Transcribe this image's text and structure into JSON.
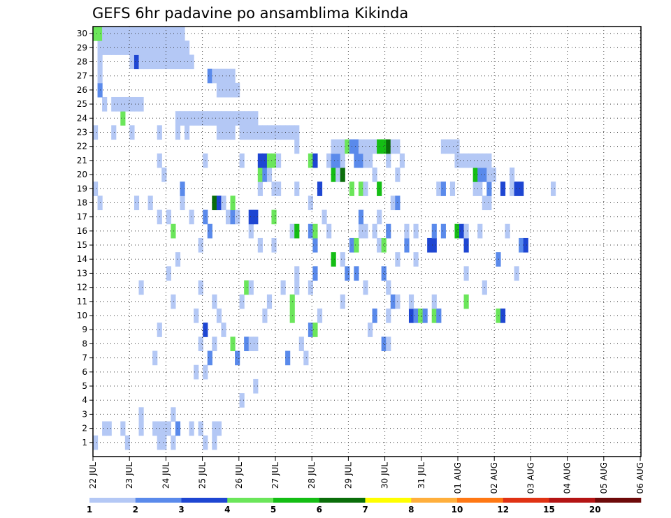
{
  "chart_data": {
    "type": "heatmap",
    "title": "GEFS 6hr padavine po ansamblima Kikinda",
    "xlabel": "",
    "ylabel": "",
    "x_tick_labels": [
      "22 JUL",
      "23 JUL",
      "24 JUL",
      "25 JUL",
      "26 JUL",
      "27 JUL",
      "28 JUL",
      "29 JUL",
      "30 JUL",
      "31 JUL",
      "01 AUG",
      "02 AUG",
      "03 AUG",
      "04 AUG",
      "05 AUG",
      "06 AUG"
    ],
    "y_tick_labels": [
      "1",
      "2",
      "3",
      "4",
      "5",
      "6",
      "7",
      "8",
      "9",
      "10",
      "11",
      "12",
      "13",
      "14",
      "15",
      "16",
      "17",
      "18",
      "19",
      "20",
      "21",
      "22",
      "23",
      "24",
      "25",
      "26",
      "27",
      "28",
      "29",
      "30"
    ],
    "grid": true,
    "colorbar": {
      "position": "bottom",
      "labels": [
        "1",
        "2",
        "3",
        "4",
        "5",
        "6",
        "7",
        "8",
        "10",
        "12",
        "15",
        "20"
      ],
      "colors": [
        "#b4c8f5",
        "#5a8aeb",
        "#1e46d2",
        "#6be65a",
        "#14be14",
        "#0a6e0a",
        "#ffff00",
        "#ffaf3c",
        "#ff7814",
        "#e03214",
        "#b41414",
        "#6e0a0a"
      ]
    },
    "values": [
      [
        0,
        0,
        1
      ],
      [
        0,
        7,
        1
      ],
      [
        0,
        14,
        1
      ],
      [
        0,
        15,
        1
      ],
      [
        0,
        17,
        1
      ],
      [
        0,
        24,
        1
      ],
      [
        0,
        26,
        1
      ],
      [
        1,
        2,
        1
      ],
      [
        1,
        3,
        1
      ],
      [
        1,
        6,
        1
      ],
      [
        1,
        10,
        1
      ],
      [
        1,
        13,
        1
      ],
      [
        1,
        14,
        1
      ],
      [
        1,
        15,
        1
      ],
      [
        1,
        16,
        1
      ],
      [
        1,
        18,
        2
      ],
      [
        1,
        21,
        1
      ],
      [
        1,
        23,
        1
      ],
      [
        1,
        26,
        1
      ],
      [
        1,
        27,
        1
      ],
      [
        2,
        10,
        1
      ],
      [
        2,
        17,
        1
      ],
      [
        3,
        32,
        1
      ],
      [
        4,
        35,
        1
      ],
      [
        5,
        22,
        1
      ],
      [
        5,
        24,
        1
      ],
      [
        6,
        13,
        1
      ],
      [
        6,
        25,
        2
      ],
      [
        6,
        31,
        2
      ],
      [
        6,
        42,
        2
      ],
      [
        6,
        46,
        1
      ],
      [
        7,
        23,
        1
      ],
      [
        7,
        26,
        1
      ],
      [
        7,
        30,
        4
      ],
      [
        7,
        33,
        2
      ],
      [
        7,
        34,
        1
      ],
      [
        7,
        35,
        1
      ],
      [
        7,
        45,
        1
      ],
      [
        7,
        63,
        2
      ],
      [
        7,
        64,
        1
      ],
      [
        8,
        14,
        1
      ],
      [
        8,
        24,
        3
      ],
      [
        8,
        28,
        1
      ],
      [
        8,
        47,
        2
      ],
      [
        8,
        48,
        4
      ],
      [
        8,
        60,
        1
      ],
      [
        9,
        22,
        1
      ],
      [
        9,
        27,
        1
      ],
      [
        9,
        37,
        1
      ],
      [
        9,
        43,
        4
      ],
      [
        9,
        49,
        1
      ],
      [
        9,
        61,
        2
      ],
      [
        9,
        64,
        1
      ],
      [
        9,
        69,
        3
      ],
      [
        9,
        70,
        2
      ],
      [
        9,
        71,
        4
      ],
      [
        9,
        72,
        2
      ],
      [
        9,
        74,
        4
      ],
      [
        9,
        75,
        2
      ],
      [
        9,
        88,
        4
      ],
      [
        9,
        89,
        3
      ],
      [
        10,
        17,
        1
      ],
      [
        10,
        26,
        1
      ],
      [
        10,
        32,
        1
      ],
      [
        10,
        38,
        1
      ],
      [
        10,
        43,
        4
      ],
      [
        10,
        54,
        1
      ],
      [
        10,
        65,
        2
      ],
      [
        10,
        66,
        1
      ],
      [
        10,
        69,
        1
      ],
      [
        10,
        74,
        1
      ],
      [
        10,
        81,
        4
      ],
      [
        11,
        10,
        1
      ],
      [
        11,
        23,
        1
      ],
      [
        11,
        33,
        4
      ],
      [
        11,
        34,
        1
      ],
      [
        11,
        41,
        1
      ],
      [
        11,
        44,
        1
      ],
      [
        11,
        47,
        1
      ],
      [
        11,
        59,
        1
      ],
      [
        11,
        64,
        1
      ],
      [
        11,
        85,
        1
      ],
      [
        12,
        16,
        1
      ],
      [
        12,
        44,
        1
      ],
      [
        12,
        48,
        2
      ],
      [
        12,
        55,
        2
      ],
      [
        12,
        57,
        2
      ],
      [
        12,
        63,
        2
      ],
      [
        12,
        81,
        1
      ],
      [
        12,
        92,
        1
      ],
      [
        13,
        18,
        1
      ],
      [
        13,
        52,
        5
      ],
      [
        13,
        54,
        1
      ],
      [
        13,
        66,
        1
      ],
      [
        13,
        70,
        1
      ],
      [
        13,
        88,
        2
      ],
      [
        14,
        23,
        1
      ],
      [
        14,
        36,
        1
      ],
      [
        14,
        39,
        1
      ],
      [
        14,
        48,
        2
      ],
      [
        14,
        56,
        2
      ],
      [
        14,
        57,
        4
      ],
      [
        14,
        62,
        1
      ],
      [
        14,
        63,
        4
      ],
      [
        14,
        68,
        2
      ],
      [
        14,
        73,
        3
      ],
      [
        14,
        74,
        3
      ],
      [
        14,
        81,
        3
      ],
      [
        14,
        93,
        2
      ],
      [
        14,
        94,
        3
      ],
      [
        15,
        17,
        4
      ],
      [
        15,
        25,
        2
      ],
      [
        15,
        34,
        1
      ],
      [
        15,
        43,
        1
      ],
      [
        15,
        44,
        5
      ],
      [
        15,
        47,
        2
      ],
      [
        15,
        48,
        4
      ],
      [
        15,
        51,
        1
      ],
      [
        15,
        58,
        1
      ],
      [
        15,
        59,
        1
      ],
      [
        15,
        61,
        1
      ],
      [
        15,
        64,
        2
      ],
      [
        15,
        68,
        1
      ],
      [
        15,
        70,
        1
      ],
      [
        15,
        74,
        2
      ],
      [
        15,
        76,
        2
      ],
      [
        15,
        79,
        5
      ],
      [
        15,
        80,
        3
      ],
      [
        15,
        81,
        1
      ],
      [
        15,
        84,
        1
      ],
      [
        15,
        90,
        1
      ],
      [
        16,
        14,
        1
      ],
      [
        16,
        16,
        1
      ],
      [
        16,
        21,
        1
      ],
      [
        16,
        24,
        2
      ],
      [
        16,
        29,
        1
      ],
      [
        16,
        30,
        2
      ],
      [
        16,
        31,
        1
      ],
      [
        16,
        34,
        3
      ],
      [
        16,
        35,
        3
      ],
      [
        16,
        39,
        4
      ],
      [
        16,
        50,
        1
      ],
      [
        16,
        58,
        2
      ],
      [
        16,
        62,
        1
      ],
      [
        17,
        1,
        1
      ],
      [
        17,
        9,
        1
      ],
      [
        17,
        12,
        1
      ],
      [
        17,
        19,
        1
      ],
      [
        17,
        26,
        6
      ],
      [
        17,
        27,
        3
      ],
      [
        17,
        28,
        1
      ],
      [
        17,
        30,
        4
      ],
      [
        17,
        47,
        1
      ],
      [
        17,
        65,
        1
      ],
      [
        17,
        66,
        2
      ],
      [
        17,
        85,
        1
      ],
      [
        17,
        86,
        1
      ],
      [
        18,
        0,
        1
      ],
      [
        18,
        19,
        2
      ],
      [
        18,
        36,
        1
      ],
      [
        18,
        39,
        1
      ],
      [
        18,
        40,
        1
      ],
      [
        18,
        44,
        1
      ],
      [
        18,
        49,
        3
      ],
      [
        18,
        56,
        4
      ],
      [
        18,
        58,
        4
      ],
      [
        18,
        59,
        1
      ],
      [
        18,
        62,
        5
      ],
      [
        18,
        75,
        1
      ],
      [
        18,
        76,
        2
      ],
      [
        18,
        78,
        1
      ],
      [
        18,
        83,
        1
      ],
      [
        18,
        84,
        1
      ],
      [
        18,
        86,
        2
      ],
      [
        18,
        89,
        3
      ],
      [
        18,
        91,
        1
      ],
      [
        18,
        92,
        3
      ],
      [
        18,
        93,
        3
      ],
      [
        18,
        100,
        1
      ],
      [
        19,
        15,
        1
      ],
      [
        19,
        36,
        4
      ],
      [
        19,
        37,
        2
      ],
      [
        19,
        38,
        1
      ],
      [
        19,
        52,
        5
      ],
      [
        19,
        53,
        1
      ],
      [
        19,
        54,
        6
      ],
      [
        19,
        61,
        1
      ],
      [
        19,
        66,
        1
      ],
      [
        19,
        83,
        5
      ],
      [
        19,
        84,
        2
      ],
      [
        19,
        85,
        2
      ],
      [
        19,
        86,
        1
      ],
      [
        19,
        87,
        1
      ],
      [
        19,
        91,
        1
      ],
      [
        20,
        14,
        1
      ],
      [
        20,
        24,
        1
      ],
      [
        20,
        32,
        1
      ],
      [
        20,
        36,
        3
      ],
      [
        20,
        37,
        3
      ],
      [
        20,
        38,
        4
      ],
      [
        20,
        39,
        4
      ],
      [
        20,
        40,
        1
      ],
      [
        20,
        47,
        4
      ],
      [
        20,
        48,
        3
      ],
      [
        20,
        51,
        1
      ],
      [
        20,
        52,
        2
      ],
      [
        20,
        53,
        2
      ],
      [
        20,
        54,
        1
      ],
      [
        20,
        57,
        2
      ],
      [
        20,
        58,
        2
      ],
      [
        20,
        59,
        1
      ],
      [
        20,
        60,
        1
      ],
      [
        20,
        64,
        1
      ],
      [
        20,
        67,
        1
      ],
      [
        20,
        79,
        1
      ],
      [
        20,
        80,
        1
      ],
      [
        20,
        81,
        1
      ],
      [
        20,
        82,
        1
      ],
      [
        20,
        83,
        1
      ],
      [
        20,
        84,
        1
      ],
      [
        20,
        85,
        1
      ],
      [
        20,
        86,
        1
      ],
      [
        21,
        44,
        1
      ],
      [
        21,
        52,
        1
      ],
      [
        21,
        53,
        1
      ],
      [
        21,
        54,
        1
      ],
      [
        21,
        55,
        4
      ],
      [
        21,
        56,
        2
      ],
      [
        21,
        57,
        2
      ],
      [
        21,
        58,
        1
      ],
      [
        21,
        59,
        1
      ],
      [
        21,
        60,
        1
      ],
      [
        21,
        61,
        1
      ],
      [
        21,
        62,
        5
      ],
      [
        21,
        63,
        5
      ],
      [
        21,
        64,
        6
      ],
      [
        21,
        65,
        1
      ],
      [
        21,
        66,
        1
      ],
      [
        21,
        76,
        1
      ],
      [
        21,
        77,
        1
      ],
      [
        21,
        78,
        1
      ],
      [
        21,
        79,
        1
      ],
      [
        22,
        0,
        1
      ],
      [
        22,
        4,
        1
      ],
      [
        22,
        8,
        1
      ],
      [
        22,
        14,
        1
      ],
      [
        22,
        18,
        1
      ],
      [
        22,
        20,
        1
      ],
      [
        22,
        27,
        1
      ],
      [
        22,
        28,
        1
      ],
      [
        22,
        29,
        1
      ],
      [
        22,
        30,
        1
      ],
      [
        22,
        32,
        1
      ],
      [
        22,
        33,
        1
      ],
      [
        22,
        34,
        1
      ],
      [
        22,
        35,
        1
      ],
      [
        22,
        36,
        1
      ],
      [
        22,
        37,
        1
      ],
      [
        22,
        38,
        1
      ],
      [
        22,
        39,
        1
      ],
      [
        22,
        40,
        1
      ],
      [
        22,
        41,
        1
      ],
      [
        22,
        42,
        1
      ],
      [
        22,
        43,
        1
      ],
      [
        22,
        44,
        1
      ],
      [
        23,
        6,
        4
      ],
      [
        23,
        18,
        1
      ],
      [
        23,
        19,
        1
      ],
      [
        23,
        20,
        1
      ],
      [
        23,
        21,
        1
      ],
      [
        23,
        22,
        1
      ],
      [
        23,
        23,
        1
      ],
      [
        23,
        24,
        1
      ],
      [
        23,
        25,
        1
      ],
      [
        23,
        26,
        1
      ],
      [
        23,
        27,
        1
      ],
      [
        23,
        28,
        1
      ],
      [
        23,
        29,
        1
      ],
      [
        23,
        30,
        1
      ],
      [
        23,
        31,
        1
      ],
      [
        23,
        32,
        1
      ],
      [
        23,
        33,
        1
      ],
      [
        23,
        34,
        1
      ],
      [
        23,
        35,
        1
      ],
      [
        24,
        2,
        1
      ],
      [
        24,
        4,
        1
      ],
      [
        24,
        5,
        1
      ],
      [
        24,
        6,
        1
      ],
      [
        24,
        7,
        1
      ],
      [
        24,
        8,
        1
      ],
      [
        24,
        9,
        1
      ],
      [
        24,
        10,
        1
      ],
      [
        25,
        1,
        2
      ],
      [
        25,
        27,
        1
      ],
      [
        25,
        28,
        1
      ],
      [
        25,
        29,
        1
      ],
      [
        25,
        30,
        1
      ],
      [
        25,
        31,
        1
      ],
      [
        26,
        1,
        1
      ],
      [
        26,
        25,
        2
      ],
      [
        26,
        26,
        1
      ],
      [
        26,
        27,
        1
      ],
      [
        26,
        28,
        1
      ],
      [
        26,
        29,
        1
      ],
      [
        26,
        30,
        1
      ],
      [
        27,
        1,
        1
      ],
      [
        27,
        8,
        1
      ],
      [
        27,
        9,
        3
      ],
      [
        27,
        10,
        1
      ],
      [
        27,
        11,
        1
      ],
      [
        27,
        12,
        1
      ],
      [
        27,
        13,
        1
      ],
      [
        27,
        14,
        1
      ],
      [
        27,
        15,
        1
      ],
      [
        27,
        16,
        1
      ],
      [
        27,
        17,
        1
      ],
      [
        27,
        18,
        1
      ],
      [
        27,
        19,
        1
      ],
      [
        27,
        20,
        1
      ],
      [
        27,
        21,
        1
      ],
      [
        28,
        1,
        1
      ],
      [
        28,
        2,
        1
      ],
      [
        28,
        3,
        1
      ],
      [
        28,
        4,
        1
      ],
      [
        28,
        5,
        1
      ],
      [
        28,
        6,
        1
      ],
      [
        28,
        7,
        1
      ],
      [
        28,
        8,
        1
      ],
      [
        28,
        9,
        1
      ],
      [
        28,
        10,
        1
      ],
      [
        28,
        11,
        1
      ],
      [
        28,
        12,
        1
      ],
      [
        28,
        13,
        1
      ],
      [
        28,
        14,
        1
      ],
      [
        28,
        15,
        1
      ],
      [
        28,
        16,
        1
      ],
      [
        28,
        17,
        1
      ],
      [
        28,
        18,
        1
      ],
      [
        28,
        19,
        1
      ],
      [
        28,
        20,
        1
      ],
      [
        29,
        0,
        4
      ],
      [
        29,
        1,
        4
      ],
      [
        29,
        2,
        1
      ],
      [
        29,
        3,
        1
      ],
      [
        29,
        4,
        1
      ],
      [
        29,
        5,
        1
      ],
      [
        29,
        6,
        1
      ],
      [
        29,
        7,
        1
      ],
      [
        29,
        8,
        1
      ],
      [
        29,
        9,
        1
      ],
      [
        29,
        10,
        1
      ],
      [
        29,
        11,
        1
      ],
      [
        29,
        12,
        1
      ],
      [
        29,
        13,
        1
      ],
      [
        29,
        14,
        1
      ],
      [
        29,
        15,
        1
      ],
      [
        29,
        16,
        1
      ],
      [
        29,
        17,
        1
      ],
      [
        29,
        18,
        1
      ],
      [
        29,
        19,
        1
      ]
    ]
  }
}
